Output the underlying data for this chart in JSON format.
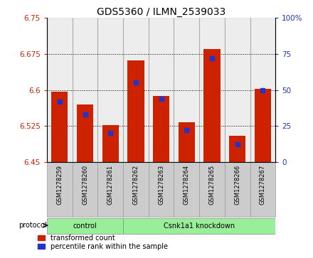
{
  "title": "GDS5360 / ILMN_2539033",
  "samples": [
    "GSM1278259",
    "GSM1278260",
    "GSM1278261",
    "GSM1278262",
    "GSM1278263",
    "GSM1278264",
    "GSM1278265",
    "GSM1278266",
    "GSM1278267"
  ],
  "red_values": [
    6.597,
    6.57,
    6.527,
    6.662,
    6.587,
    6.533,
    6.686,
    6.505,
    6.603
  ],
  "blue_percentiles": [
    42,
    33,
    20,
    55,
    44,
    22,
    72,
    12,
    50
  ],
  "ylim_left": [
    6.45,
    6.75
  ],
  "ylim_right": [
    0,
    100
  ],
  "yticks_left": [
    6.45,
    6.525,
    6.6,
    6.675,
    6.75
  ],
  "yticks_right": [
    0,
    25,
    50,
    75,
    100
  ],
  "base_value": 6.45,
  "bar_color": "#cc2200",
  "blue_color": "#2233cc",
  "control_samples": 3,
  "control_label": "control",
  "treatment_label": "Csnk1a1 knockdown",
  "protocol_label": "protocol",
  "legend_red": "transformed count",
  "legend_blue": "percentile rank within the sample",
  "green_bg": "#99ee99",
  "bar_bg": "#cccccc",
  "title_fontsize": 10,
  "tick_fontsize": 7.5,
  "sample_fontsize": 6,
  "legend_fontsize": 7
}
